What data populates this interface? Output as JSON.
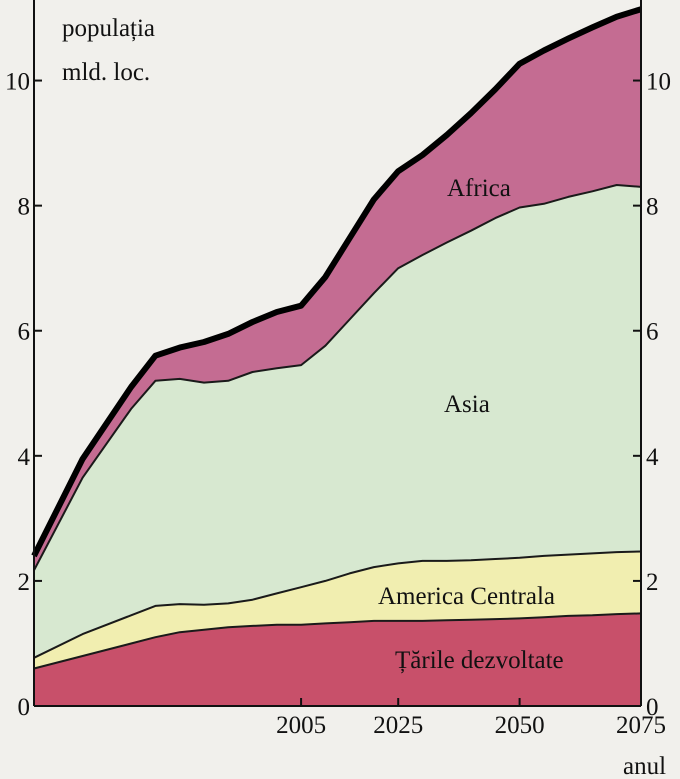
{
  "chart_data": {
    "type": "area",
    "stacked": true,
    "title": "",
    "ylabel_line1": "populația",
    "ylabel_line2": "mld. loc.",
    "xlabel": "anul",
    "ylim": [
      0,
      11
    ],
    "yticks": [
      0,
      2,
      4,
      6,
      8,
      10
    ],
    "ytick_labels": [
      "0",
      "2",
      "4",
      "6",
      "8",
      "10"
    ],
    "xlim": [
      1950,
      2075
    ],
    "xticks": [
      2005,
      2025,
      2050,
      2075
    ],
    "xtick_labels": [
      "2005",
      "2025",
      "2050",
      "2075"
    ],
    "x": [
      1950,
      1960,
      1970,
      1975,
      1980,
      1985,
      1990,
      1995,
      2000,
      2005,
      2010,
      2015,
      2020,
      2025,
      2030,
      2035,
      2040,
      2045,
      2050,
      2055,
      2060,
      2065,
      2070,
      2075
    ],
    "series": [
      {
        "name": "Țările dezvoltate",
        "color": "#c8506a",
        "values": [
          0.6,
          0.8,
          1.0,
          1.1,
          1.18,
          1.22,
          1.26,
          1.28,
          1.3,
          1.3,
          1.32,
          1.34,
          1.36,
          1.36,
          1.36,
          1.37,
          1.38,
          1.39,
          1.4,
          1.42,
          1.44,
          1.45,
          1.47,
          1.48
        ]
      },
      {
        "name": "America Centrala",
        "color": "#f1eeb0",
        "values": [
          0.17,
          0.35,
          0.45,
          0.5,
          0.45,
          0.4,
          0.38,
          0.42,
          0.5,
          0.6,
          0.68,
          0.78,
          0.86,
          0.92,
          0.96,
          0.95,
          0.95,
          0.96,
          0.97,
          0.98,
          0.98,
          0.99,
          0.99,
          0.99
        ]
      },
      {
        "name": "Asia",
        "color": "#d7e8d0",
        "values": [
          1.4,
          2.5,
          3.3,
          3.6,
          3.6,
          3.55,
          3.56,
          3.64,
          3.6,
          3.55,
          3.76,
          4.06,
          4.38,
          4.72,
          4.89,
          5.09,
          5.27,
          5.45,
          5.6,
          5.63,
          5.72,
          5.79,
          5.87,
          5.83
        ]
      },
      {
        "name": "Africa",
        "color": "#c46c92",
        "values": [
          0.23,
          0.3,
          0.35,
          0.4,
          0.5,
          0.65,
          0.75,
          0.8,
          0.9,
          0.95,
          1.1,
          1.3,
          1.5,
          1.55,
          1.6,
          1.72,
          1.88,
          2.06,
          2.3,
          2.45,
          2.53,
          2.62,
          2.69,
          2.84
        ]
      }
    ],
    "region_labels": [
      "Africa",
      "Asia",
      "America Centrala",
      "Țările dezvoltate"
    ],
    "grid": false,
    "colors": {
      "axis": "#111111",
      "top_line": "#000000",
      "boundary": "#1a1a1a",
      "background": "#f1f0ec"
    }
  }
}
